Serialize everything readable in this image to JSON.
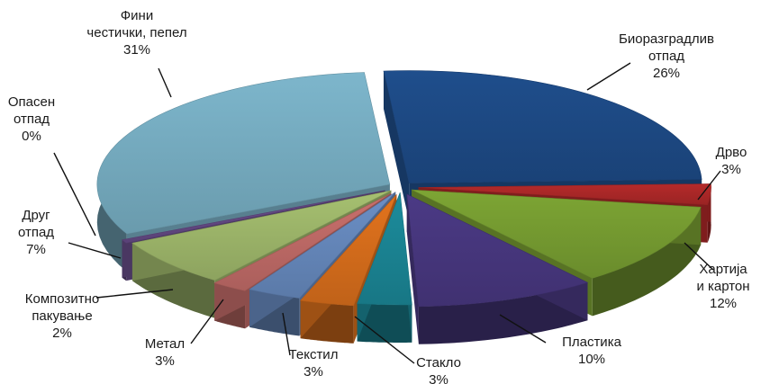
{
  "chart_data": {
    "type": "pie",
    "style": "exploded-3d",
    "legend": "none",
    "slices": [
      {
        "lines": [
          "Биоразградлив",
          "отпад"
        ],
        "pct": "26%",
        "value": 26,
        "color": "#1f4e8c"
      },
      {
        "lines": [
          "Дрво"
        ],
        "pct": "3%",
        "value": 3,
        "color": "#b52a2a"
      },
      {
        "lines": [
          "Хартија",
          "и картон"
        ],
        "pct": "12%",
        "value": 12,
        "color": "#7da534"
      },
      {
        "lines": [
          "Пластика"
        ],
        "pct": "10%",
        "value": 10,
        "color": "#4b3a85"
      },
      {
        "lines": [
          "Стакло"
        ],
        "pct": "3%",
        "value": 3,
        "color": "#1c8c9c"
      },
      {
        "lines": [
          "Текстил"
        ],
        "pct": "3%",
        "value": 3,
        "color": "#e2731d"
      },
      {
        "lines": [
          "Метал"
        ],
        "pct": "3%",
        "value": 3,
        "color": "#6b8fc6"
      },
      {
        "lines": [
          "Композитно",
          "пакување"
        ],
        "pct": "2%",
        "value": 2,
        "color": "#c9706c"
      },
      {
        "lines": [
          "Друг",
          "отпад"
        ],
        "pct": "7%",
        "value": 7,
        "color": "#a6c070"
      },
      {
        "lines": [
          "Опасен",
          "отпад"
        ],
        "pct": "0%",
        "value": 0,
        "color": "#6a4e8c"
      },
      {
        "lines": [
          "Фини",
          "честички, пепел"
        ],
        "pct": "31%",
        "value": 31,
        "color": "#7db6cc"
      }
    ]
  }
}
